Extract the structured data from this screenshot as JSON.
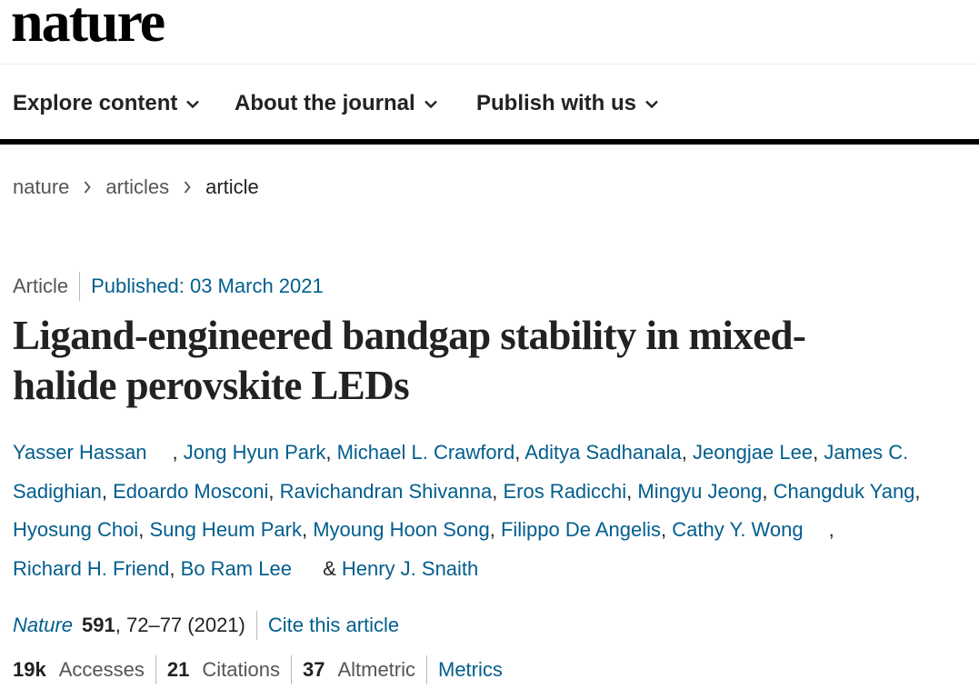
{
  "logo": "nature",
  "nav": {
    "items": [
      {
        "label": "Explore content"
      },
      {
        "label": "About the journal"
      },
      {
        "label": "Publish with us"
      }
    ]
  },
  "breadcrumb": {
    "items": [
      "nature",
      "articles"
    ],
    "current": "article"
  },
  "article": {
    "type": "Article",
    "published": "Published: 03 March 2021",
    "title_line1": "Ligand-engineered bandgap stability in mixed-",
    "title_line2": "halide perovskite LEDs",
    "authors": [
      "Yasser Hassan",
      "Jong Hyun Park",
      "Michael L. Crawford",
      "Aditya Sadhanala",
      "Jeongjae Lee",
      "James C.",
      "Sadighian",
      "Edoardo Mosconi",
      "Ravichandran Shivanna",
      "Eros Radicchi",
      "Mingyu Jeong",
      "Changduk Yang",
      "Hyosung Choi",
      "Sung Heum Park",
      "Myoung Hoon Song",
      "Filippo De Angelis",
      "Cathy Y. Wong",
      "Richard H. Friend",
      "Bo Ram Lee",
      "Henry J. Snaith"
    ],
    "comma": ",",
    "ampersand": "&",
    "citation": {
      "journal": "Nature",
      "volume": "591",
      "pages": ", 72–77 (2021)",
      "cite_label": "Cite this article"
    },
    "metrics": {
      "accesses_value": "19k",
      "accesses_label": "Accesses",
      "citations_value": "21",
      "citations_label": "Citations",
      "altmetric_value": "37",
      "altmetric_label": "Altmetric",
      "metrics_link": "Metrics"
    }
  },
  "colors": {
    "link": "#025e8d",
    "text": "#222222",
    "muted": "#555555",
    "rule": "#000000"
  },
  "icons": {
    "nav_chevron": "chevron-down-icon",
    "breadcrumb_separator": "chevron-right-icon"
  }
}
